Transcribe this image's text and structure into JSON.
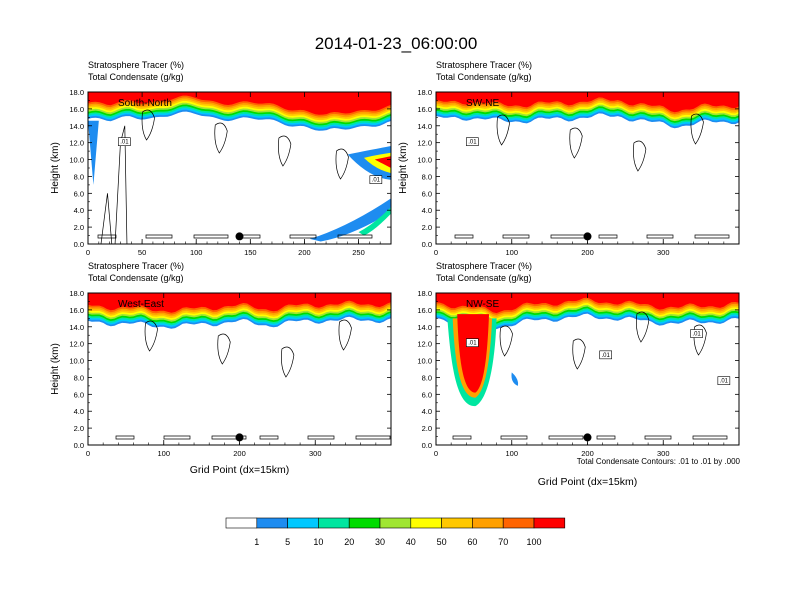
{
  "title": "2014-01-23_06:00:00",
  "footnote": "Total Condensate Contours: .01 to .01 by .000",
  "colorbar": {
    "labels": [
      "1",
      "5",
      "10",
      "20",
      "30",
      "40",
      "50",
      "60",
      "70",
      "100"
    ],
    "colors": [
      "#ffffff",
      "#1e8cf0",
      "#00c8ff",
      "#00e6a0",
      "#00dc00",
      "#a0e632",
      "#ffff00",
      "#ffc800",
      "#ffa000",
      "#ff6400",
      "#ff0000"
    ]
  },
  "chart_data": [
    {
      "type": "heatmap",
      "panel": "South-North",
      "subtitle_left": "Stratosphere Tracer   (%)",
      "subtitle_left2": "Total Condensate   (g/kg)",
      "ylabel": "Height (km)",
      "xlabel": "",
      "xlim": [
        0,
        280
      ],
      "ylim": [
        0,
        18
      ],
      "xticks": [
        0,
        50,
        100,
        150,
        200,
        250
      ],
      "yticks": [
        "0.0",
        "2.0",
        "4.0",
        "6.0",
        "8.0",
        "10.0",
        "12.0",
        "14.0",
        "16.0",
        "18.0"
      ],
      "contour_labels": [
        ".01",
        ".01"
      ],
      "marker_x": 140,
      "tropopause_km": [
        [
          0,
          14.8
        ],
        [
          20,
          14.4
        ],
        [
          40,
          15.2
        ],
        [
          60,
          15.0
        ],
        [
          80,
          15.2
        ],
        [
          100,
          15.4
        ],
        [
          120,
          15.0
        ],
        [
          140,
          14.8
        ],
        [
          160,
          14.6
        ],
        [
          180,
          14.4
        ],
        [
          200,
          14.0
        ],
        [
          220,
          13.2
        ],
        [
          240,
          13.6
        ],
        [
          260,
          14.2
        ],
        [
          280,
          14.4
        ]
      ]
    },
    {
      "type": "heatmap",
      "panel": "SW-NE",
      "subtitle_left": "Stratosphere Tracer   (%)",
      "subtitle_left2": "Total Condensate   (g/kg)",
      "ylabel": "Height (km)",
      "xlabel": "",
      "xlim": [
        0,
        400
      ],
      "ylim": [
        0,
        18
      ],
      "xticks": [
        0,
        100,
        200,
        300
      ],
      "yticks": [
        "0.0",
        "2.0",
        "4.0",
        "6.0",
        "8.0",
        "10.0",
        "12.0",
        "14.0",
        "16.0",
        "18.0"
      ],
      "contour_labels": [
        ".01"
      ],
      "marker_x": 200,
      "tropopause_km": [
        [
          0,
          14.8
        ],
        [
          40,
          15.0
        ],
        [
          80,
          14.6
        ],
        [
          120,
          14.6
        ],
        [
          160,
          14.8
        ],
        [
          200,
          15.0
        ],
        [
          240,
          15.2
        ],
        [
          280,
          14.4
        ],
        [
          320,
          14.0
        ],
        [
          360,
          14.4
        ],
        [
          400,
          14.6
        ]
      ]
    },
    {
      "type": "heatmap",
      "panel": "West-East",
      "subtitle_left": "Stratosphere Tracer   (%)",
      "subtitle_left2": "Total Condensate   (g/kg)",
      "ylabel": "Height (km)",
      "xlabel": "Grid Point (dx=15km)",
      "xlim": [
        0,
        400
      ],
      "ylim": [
        0,
        18
      ],
      "xticks": [
        0,
        100,
        200,
        300
      ],
      "yticks": [
        "0.0",
        "2.0",
        "4.0",
        "6.0",
        "8.0",
        "10.0",
        "12.0",
        "14.0",
        "16.0",
        "18.0"
      ],
      "contour_labels": [],
      "marker_x": 200,
      "tropopause_km": [
        [
          0,
          14.6
        ],
        [
          40,
          14.4
        ],
        [
          80,
          14.2
        ],
        [
          120,
          14.0
        ],
        [
          160,
          14.4
        ],
        [
          200,
          14.6
        ],
        [
          240,
          14.2
        ],
        [
          280,
          14.6
        ],
        [
          320,
          14.8
        ],
        [
          360,
          14.8
        ],
        [
          400,
          14.8
        ]
      ]
    },
    {
      "type": "heatmap",
      "panel": "NW-SE",
      "subtitle_left": "Stratosphere Tracer   (%)",
      "subtitle_left2": "Total Condensate   (g/kg)",
      "ylabel": "",
      "xlabel": "Grid Point (dx=15km)",
      "xlim": [
        0,
        400
      ],
      "ylim": [
        0,
        18
      ],
      "xticks": [
        0,
        100,
        200,
        300
      ],
      "yticks": [
        "0.0",
        "2.0",
        "4.0",
        "6.0",
        "8.0",
        "10.0",
        "12.0",
        "14.0",
        "16.0",
        "18.0"
      ],
      "contour_labels": [
        ".01",
        ".01",
        ".01",
        ".01"
      ],
      "marker_x": 200,
      "tropopause_km": [
        [
          0,
          15.0
        ],
        [
          40,
          14.4
        ],
        [
          80,
          14.0
        ],
        [
          120,
          14.6
        ],
        [
          160,
          15.0
        ],
        [
          200,
          15.2
        ],
        [
          240,
          15.0
        ],
        [
          280,
          14.6
        ],
        [
          320,
          14.4
        ],
        [
          360,
          14.6
        ],
        [
          400,
          14.8
        ]
      ]
    }
  ]
}
